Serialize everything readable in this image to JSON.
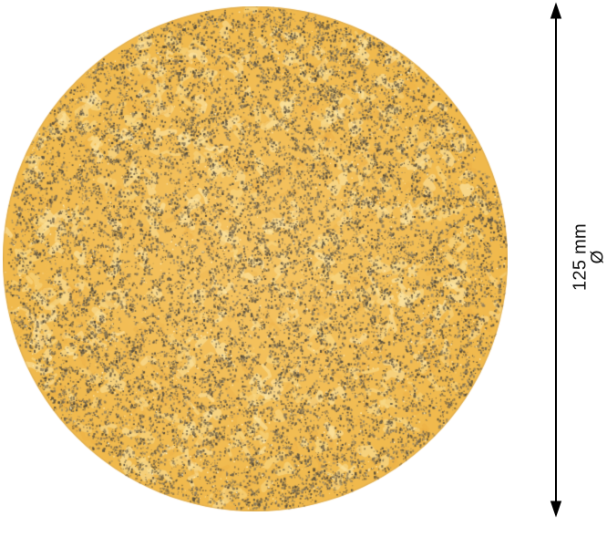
{
  "page": {
    "background_color": "#ffffff"
  },
  "product_image": {
    "alt": "Round sanding disc with gold abrasive grain surface",
    "grain": {
      "base_color": "#f5c463",
      "base_edge_color": "#f0b94c",
      "light_patch_colors": [
        "#f9dc8d",
        "#fbe6a6"
      ],
      "shade_patch_color": "#eaa93f",
      "speck_colors": [
        "#6b5c43",
        "#7d6c4f",
        "#58503f",
        "#8d7b58",
        "#4f4534",
        "#9c8a64"
      ],
      "light_speck_color": "#fdf0c4",
      "edge_line_color": "#d1a24a"
    }
  },
  "dimension_annotation": {
    "line1": "125 mm",
    "line2": "Ø",
    "value_mm": 125,
    "arrow_color": "#000000",
    "text_color": "#111111"
  }
}
